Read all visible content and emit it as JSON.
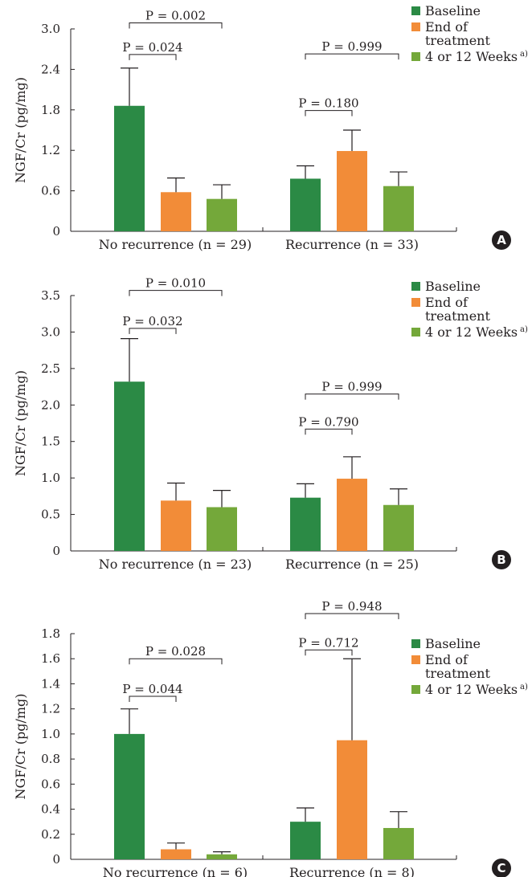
{
  "colors": {
    "baseline": "#2b8a45",
    "end_of_treatment": "#f28c38",
    "weeks": "#74a83a",
    "axis": "#231f20",
    "badge": "#231f20"
  },
  "chart_data": [
    {
      "panel": "A",
      "type": "bar",
      "ylabel": "NGF/Cr (pg/mg)",
      "ylim": [
        0,
        3.0
      ],
      "yticks": [
        "0",
        "0.6",
        "1.2",
        "1.8",
        "2.4",
        "3.0"
      ],
      "ytick_values": [
        0,
        0.6,
        1.2,
        1.8,
        2.4,
        3.0
      ],
      "categories": [
        "No recurrence (n = 29)",
        "Recurrence (n = 33)"
      ],
      "series": [
        {
          "name": "Baseline",
          "values": [
            1.86,
            0.78
          ],
          "errors": [
            0.56,
            0.19
          ]
        },
        {
          "name": "End of treatment",
          "values": [
            0.58,
            1.19
          ],
          "errors": [
            0.21,
            0.31
          ]
        },
        {
          "name": "4 or 12 Weeks",
          "values": [
            0.48,
            0.67
          ],
          "errors": [
            0.21,
            0.21
          ]
        }
      ],
      "comparisons": [
        {
          "category": 0,
          "from": 0,
          "to": 2,
          "label": "P = 0.002",
          "y": 3.09
        },
        {
          "category": 0,
          "from": 0,
          "to": 1,
          "label": "P = 0.024",
          "y": 2.62
        },
        {
          "category": 1,
          "from": 0,
          "to": 2,
          "label": "P = 0.999",
          "y": 2.63
        },
        {
          "category": 1,
          "from": 0,
          "to": 1,
          "label": "P = 0.180",
          "y": 1.79
        }
      ],
      "legend": {
        "items": [
          {
            "lines": [
              "Baseline"
            ]
          },
          {
            "lines": [
              "End of",
              "treatment"
            ]
          },
          {
            "lines": [
              "4 or 12 Weeks"
            ],
            "superscript": "a)"
          }
        ]
      }
    },
    {
      "panel": "B",
      "type": "bar",
      "ylabel": "NGF/Cr (pg/mg)",
      "ylim": [
        0,
        3.5
      ],
      "yticks": [
        "0",
        "0.5",
        "1.0",
        "1.5",
        "2.0",
        "2.5",
        "3.0",
        "3.5"
      ],
      "ytick_values": [
        0,
        0.5,
        1.0,
        1.5,
        2.0,
        2.5,
        3.0,
        3.5
      ],
      "categories": [
        "No recurrence (n = 23)",
        "Recurrence (n = 25)"
      ],
      "series": [
        {
          "name": "Baseline",
          "values": [
            2.32,
            0.73
          ],
          "errors": [
            0.59,
            0.19
          ]
        },
        {
          "name": "End of treatment",
          "values": [
            0.69,
            0.99
          ],
          "errors": [
            0.24,
            0.3
          ]
        },
        {
          "name": "4 or 12 Weeks",
          "values": [
            0.6,
            0.63
          ],
          "errors": [
            0.23,
            0.22
          ]
        }
      ],
      "comparisons": [
        {
          "category": 0,
          "from": 0,
          "to": 2,
          "label": "P = 0.010",
          "y": 3.57
        },
        {
          "category": 0,
          "from": 0,
          "to": 1,
          "label": "P = 0.032",
          "y": 3.05
        },
        {
          "category": 1,
          "from": 0,
          "to": 2,
          "label": "P = 0.999",
          "y": 2.15
        },
        {
          "category": 1,
          "from": 0,
          "to": 1,
          "label": "P = 0.790",
          "y": 1.67
        }
      ],
      "legend": {
        "items": [
          {
            "lines": [
              "Baseline"
            ]
          },
          {
            "lines": [
              "End of",
              "treatment"
            ]
          },
          {
            "lines": [
              "4 or 12 Weeks"
            ],
            "superscript": "a)"
          }
        ]
      }
    },
    {
      "panel": "C",
      "type": "bar",
      "ylabel": "NGF/Cr (pg/mg)",
      "ylim": [
        0,
        1.8
      ],
      "yticks": [
        "0",
        "0.2",
        "0.4",
        "0.6",
        "0.8",
        "1.0",
        "1.2",
        "1.4",
        "1.6",
        "1.8"
      ],
      "ytick_values": [
        0,
        0.2,
        0.4,
        0.6,
        0.8,
        1.0,
        1.2,
        1.4,
        1.6,
        1.8
      ],
      "categories": [
        "No recurrence (n = 6)",
        "Recurrence (n = 8)"
      ],
      "series": [
        {
          "name": "Baseline",
          "values": [
            1.0,
            0.3
          ],
          "errors": [
            0.2,
            0.11
          ]
        },
        {
          "name": "End of treatment",
          "values": [
            0.08,
            0.95
          ],
          "errors": [
            0.05,
            0.65
          ]
        },
        {
          "name": "4 or 12 Weeks",
          "values": [
            0.04,
            0.25
          ],
          "errors": [
            0.02,
            0.13
          ]
        }
      ],
      "comparisons": [
        {
          "category": 0,
          "from": 0,
          "to": 2,
          "label": "P = 0.028",
          "y": 1.6
        },
        {
          "category": 0,
          "from": 0,
          "to": 1,
          "label": "P = 0.044",
          "y": 1.3
        },
        {
          "category": 1,
          "from": 0,
          "to": 2,
          "label": "P = 0.948",
          "y": 1.96
        },
        {
          "category": 1,
          "from": 0,
          "to": 1,
          "label": "P = 0.712",
          "y": 1.67
        }
      ],
      "legend": {
        "items": [
          {
            "lines": [
              "Baseline"
            ]
          },
          {
            "lines": [
              "End of",
              "treatment"
            ]
          },
          {
            "lines": [
              "4 or 12 Weeks"
            ],
            "superscript": "a)"
          }
        ]
      }
    }
  ]
}
